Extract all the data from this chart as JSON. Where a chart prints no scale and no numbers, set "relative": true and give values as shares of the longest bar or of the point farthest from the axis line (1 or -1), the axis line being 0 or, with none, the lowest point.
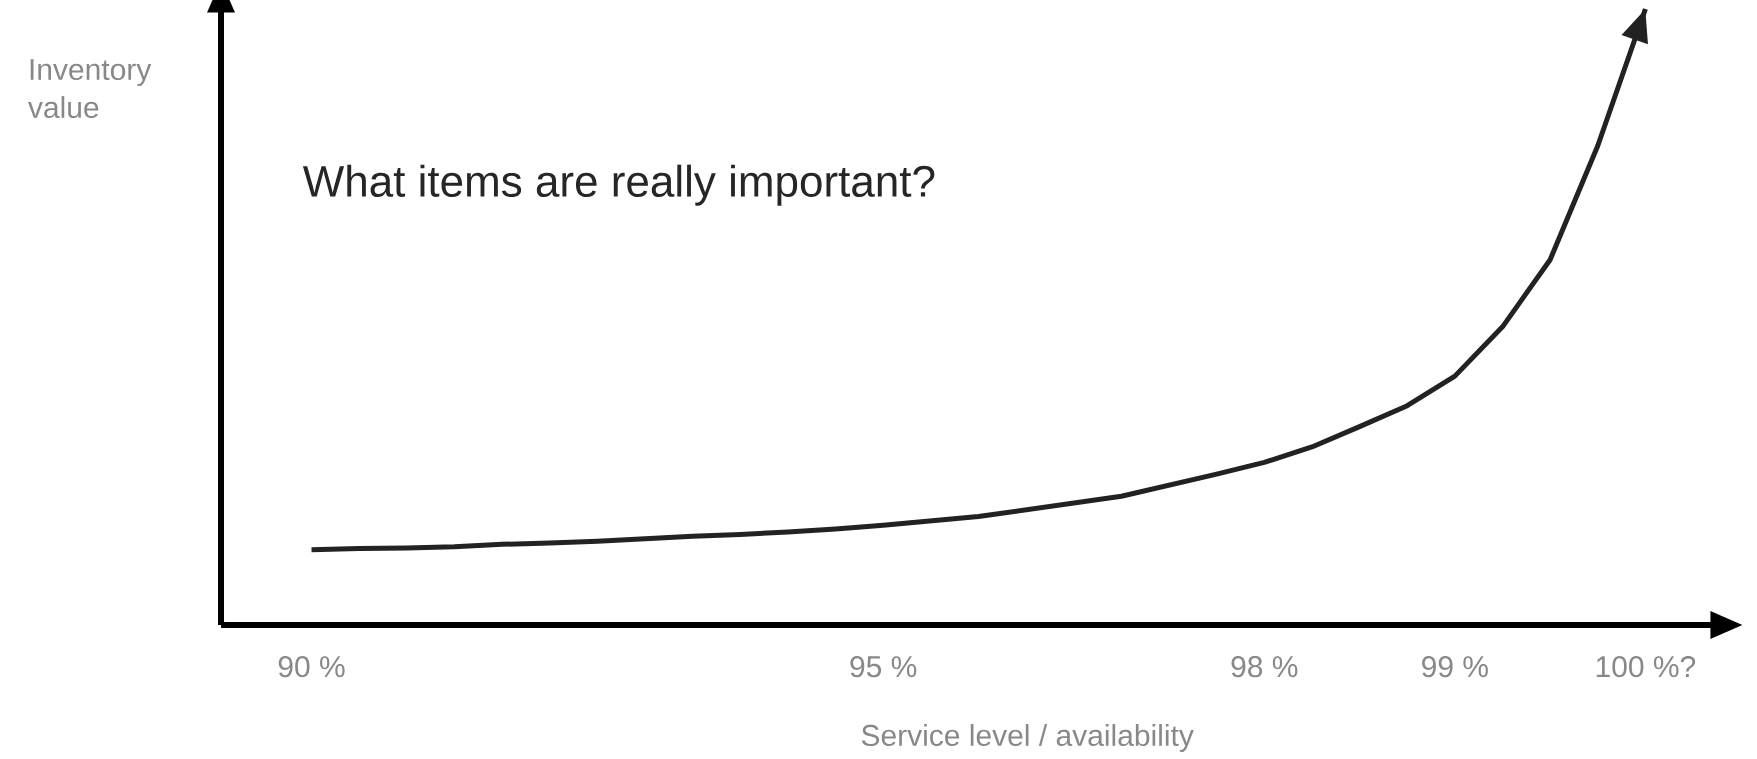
{
  "chart_data": {
    "type": "line",
    "relative": true,
    "title": "What items are really important?",
    "xlabel": "Service level / availability",
    "ylabel": "Inventory value",
    "categories": [
      "90 %",
      null,
      null,
      null,
      null,
      null,
      null,
      null,
      null,
      null,
      null,
      null,
      "95 %",
      null,
      null,
      null,
      null,
      null,
      null,
      null,
      "98 %",
      null,
      null,
      null,
      "99 %",
      null,
      null,
      null,
      "100 %?"
    ],
    "series": [
      {
        "color": "#222222",
        "values": [
          0.122,
          0.124,
          0.125,
          0.127,
          0.131,
          0.133,
          0.136,
          0.14,
          0.144,
          0.147,
          0.151,
          0.156,
          0.162,
          0.169,
          0.176,
          0.187,
          0.198,
          0.209,
          0.227,
          0.245,
          0.264,
          0.289,
          0.322,
          0.356,
          0.404,
          0.484,
          0.593,
          0.778,
          1.0
        ]
      }
    ],
    "line_style": "solid"
  }
}
